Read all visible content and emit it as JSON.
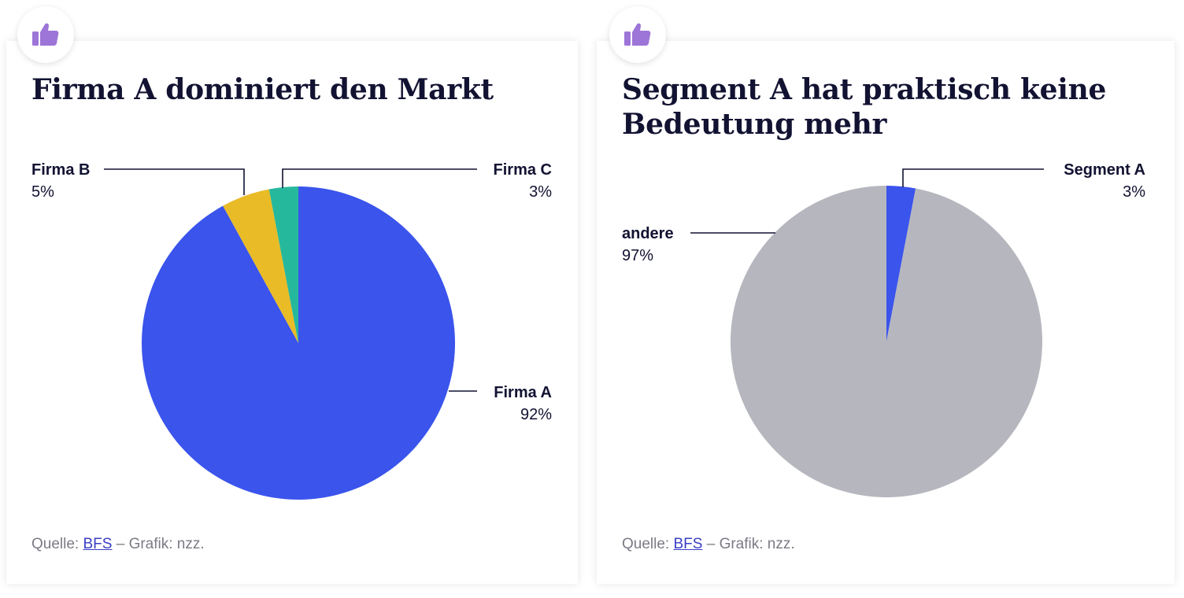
{
  "colors": {
    "firma_a": "#3a54ec",
    "firma_b": "#e9bb26",
    "firma_c": "#26b89c",
    "segment_a": "#3a54ec",
    "andere": "#b6b6be",
    "badge_icon": "#9d75d8",
    "text": "#121232"
  },
  "icons": {
    "badge": "thumbs-up-icon"
  },
  "chart_data": [
    {
      "type": "pie",
      "title": "Firma A dominiert den Markt",
      "slices": [
        {
          "name": "Firma A",
          "value": 92,
          "label": "92%"
        },
        {
          "name": "Firma B",
          "value": 5,
          "label": "5%"
        },
        {
          "name": "Firma C",
          "value": 3,
          "label": "3%"
        }
      ],
      "source": {
        "prefix": "Quelle:",
        "link": "BFS",
        "suffix": "– Grafik: nzz."
      }
    },
    {
      "type": "pie",
      "title": "Segment A hat praktisch keine Bedeutung mehr",
      "slices": [
        {
          "name": "Segment A",
          "value": 3,
          "label": "3%"
        },
        {
          "name": "andere",
          "value": 97,
          "label": "97%"
        }
      ],
      "source": {
        "prefix": "Quelle:",
        "link": "BFS",
        "suffix": "– Grafik: nzz."
      }
    }
  ]
}
